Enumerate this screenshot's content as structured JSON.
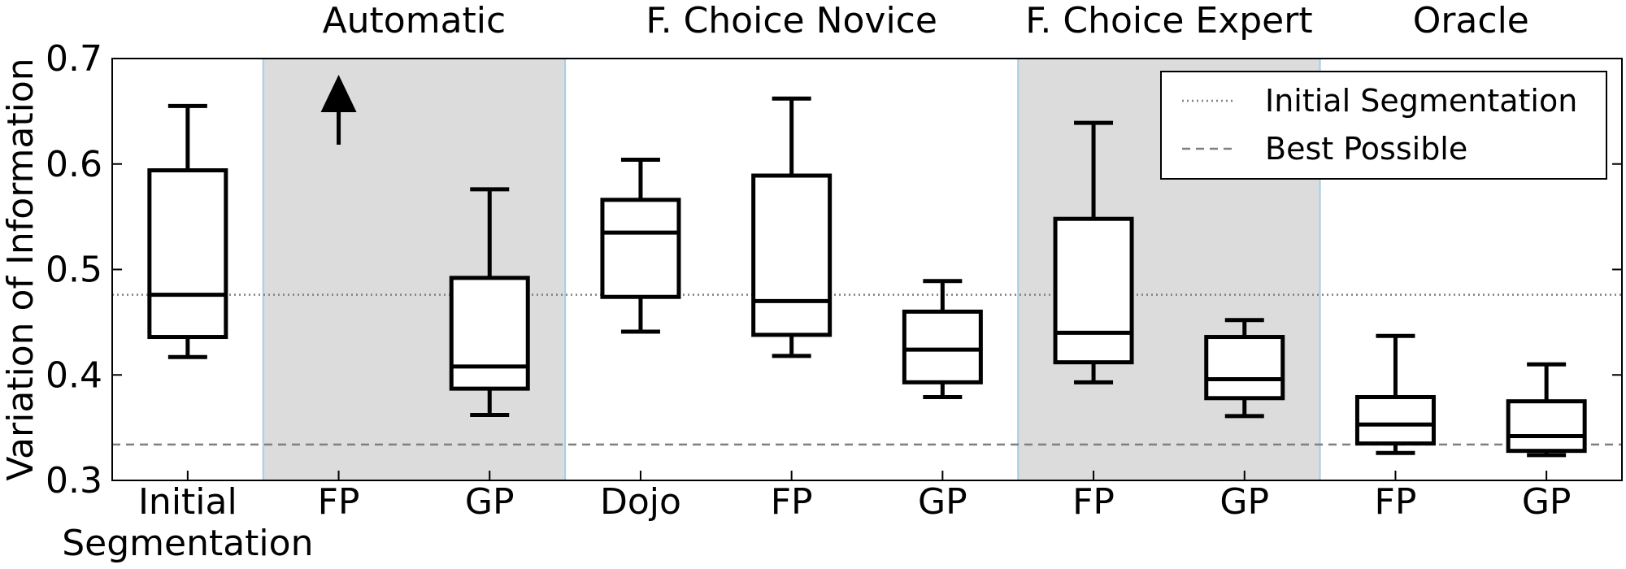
{
  "chart_data": {
    "type": "box",
    "ylabel": "Variation of Information",
    "ylim": [
      0.3,
      0.7
    ],
    "yticks": [
      0.3,
      0.4,
      0.5,
      0.6,
      0.7
    ],
    "ytick_labels": [
      "0.3",
      "0.4",
      "0.5",
      "0.6",
      "0.7"
    ],
    "grid": false,
    "groups": [
      {
        "title": "",
        "shaded": false,
        "start": 0,
        "end": 1
      },
      {
        "title": "Automatic",
        "shaded": true,
        "start": 1,
        "end": 3
      },
      {
        "title": "F. Choice Novice",
        "shaded": false,
        "start": 3,
        "end": 6
      },
      {
        "title": "F. Choice Expert",
        "shaded": true,
        "start": 6,
        "end": 8
      },
      {
        "title": "Oracle",
        "shaded": false,
        "start": 8,
        "end": 10
      }
    ],
    "categories": [
      {
        "label": "Initial",
        "label2": "Segmentation",
        "box": {
          "whislo": 0.417,
          "q1": 0.436,
          "med": 0.476,
          "q3": 0.594,
          "whishi": 0.655
        }
      },
      {
        "label": "FP",
        "box": null,
        "off_chart_arrow": true
      },
      {
        "label": "GP",
        "box": {
          "whislo": 0.362,
          "q1": 0.387,
          "med": 0.408,
          "q3": 0.492,
          "whishi": 0.576
        }
      },
      {
        "label": "Dojo",
        "box": {
          "whislo": 0.441,
          "q1": 0.474,
          "med": 0.535,
          "q3": 0.566,
          "whishi": 0.604
        }
      },
      {
        "label": "FP",
        "box": {
          "whislo": 0.418,
          "q1": 0.438,
          "med": 0.47,
          "q3": 0.589,
          "whishi": 0.662
        }
      },
      {
        "label": "GP",
        "box": {
          "whislo": 0.379,
          "q1": 0.393,
          "med": 0.424,
          "q3": 0.46,
          "whishi": 0.489
        }
      },
      {
        "label": "FP",
        "box": {
          "whislo": 0.393,
          "q1": 0.412,
          "med": 0.44,
          "q3": 0.548,
          "whishi": 0.639
        }
      },
      {
        "label": "GP",
        "box": {
          "whislo": 0.361,
          "q1": 0.378,
          "med": 0.396,
          "q3": 0.436,
          "whishi": 0.452
        }
      },
      {
        "label": "FP",
        "box": {
          "whislo": 0.326,
          "q1": 0.335,
          "med": 0.353,
          "q3": 0.379,
          "whishi": 0.437
        }
      },
      {
        "label": "GP",
        "box": {
          "whislo": 0.324,
          "q1": 0.328,
          "med": 0.342,
          "q3": 0.375,
          "whishi": 0.41
        }
      }
    ],
    "reference_lines": [
      {
        "name": "Initial Segmentation",
        "value": 0.476,
        "style": "dotted",
        "color": "#808080"
      },
      {
        "name": "Best Possible",
        "value": 0.334,
        "style": "dashed",
        "color": "#808080"
      }
    ],
    "legend": {
      "position": "top-right"
    },
    "colors": {
      "shade": "#dcdcdc",
      "separator": "#a6cde6",
      "box": "#000000"
    }
  }
}
